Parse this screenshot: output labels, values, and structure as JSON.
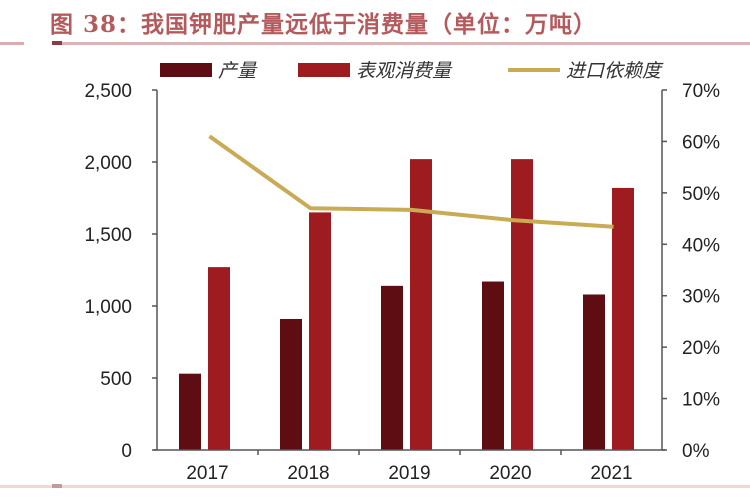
{
  "title": "图 38：我国钾肥产量远低于消费量（单位：万吨）",
  "legend": [
    {
      "label": "产量",
      "color": "#5e0e12",
      "type": "bar"
    },
    {
      "label": "表观消费量",
      "color": "#9e1c20",
      "type": "bar"
    },
    {
      "label": "进口依赖度",
      "color": "#c9aa55",
      "type": "line"
    }
  ],
  "colors": {
    "production": "#5e0e12",
    "consumption": "#9e1c20",
    "dependency": "#c9aa55",
    "axis": "#555555",
    "title": "#b45a5c"
  },
  "chart_data": {
    "type": "bar",
    "title": "图 38：我国钾肥产量远低于消费量（单位：万吨）",
    "xlabel": "",
    "ylabel": "",
    "categories": [
      "2017",
      "2018",
      "2019",
      "2020",
      "2021"
    ],
    "series": [
      {
        "name": "产量",
        "type": "bar",
        "axis": "left",
        "values": [
          530,
          910,
          1140,
          1170,
          1080
        ]
      },
      {
        "name": "表观消费量",
        "type": "bar",
        "axis": "left",
        "values": [
          1270,
          1650,
          2020,
          2020,
          1820
        ]
      },
      {
        "name": "进口依赖度",
        "type": "line",
        "axis": "right",
        "values": [
          0.61,
          0.47,
          0.467,
          0.447,
          0.434
        ]
      }
    ],
    "ylim": [
      0,
      2500
    ],
    "yticks": [
      "0",
      "500",
      "1,000",
      "1,500",
      "2,000",
      "2,500"
    ],
    "y2lim": [
      0,
      0.7
    ],
    "y2ticks": [
      "0%",
      "10%",
      "20%",
      "30%",
      "40%",
      "50%",
      "60%",
      "70%"
    ],
    "grid": false,
    "legend_position": "top"
  }
}
